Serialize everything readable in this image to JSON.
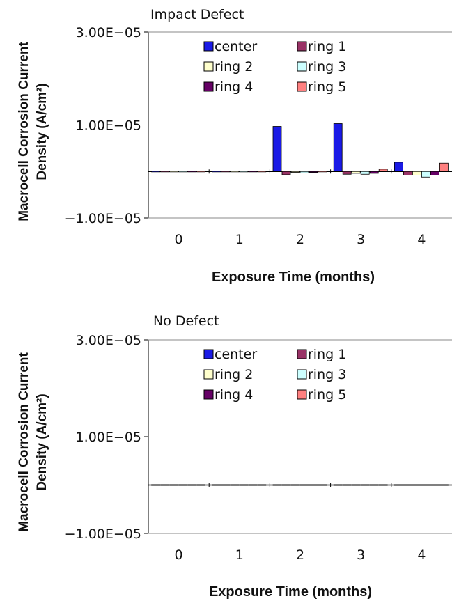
{
  "chart_data": [
    {
      "type": "bar",
      "title": "Impact Defect",
      "xlabel": "Exposure Time (months)",
      "ylabel_line1": "Macrocell Corrosion Current",
      "ylabel_line2": "Density (A/cm²)",
      "categories": [
        "0",
        "1",
        "2",
        "3",
        "4"
      ],
      "ylim": [
        -1e-05,
        3e-05
      ],
      "yticks": [
        {
          "value": 3e-05,
          "label": "3.00E−05"
        },
        {
          "value": 1e-05,
          "label": "1.00E−05"
        },
        {
          "value": -1e-05,
          "label": "−1.00E−05"
        }
      ],
      "grid": false,
      "legend_position": "top",
      "series": [
        {
          "name": "center",
          "color": "#1a1ae6",
          "values": [
            0.0,
            0.0,
            9.7e-06,
            1.03e-05,
            2e-06
          ]
        },
        {
          "name": "ring 1",
          "color": "#993366",
          "values": [
            0.0,
            0.0,
            -7e-07,
            -6e-07,
            -8e-07
          ]
        },
        {
          "name": "ring 2",
          "color": "#ffffcc",
          "values": [
            0.0,
            0.0,
            -2e-07,
            -4e-07,
            -8e-07
          ]
        },
        {
          "name": "ring 3",
          "color": "#ccffff",
          "values": [
            0.0,
            0.0,
            -3e-07,
            -6e-07,
            -1.2e-06
          ]
        },
        {
          "name": "ring 4",
          "color": "#660066",
          "values": [
            0.0,
            0.0,
            -2e-07,
            -4e-07,
            -8e-07
          ]
        },
        {
          "name": "ring 5",
          "color": "#ff8080",
          "values": [
            0.0,
            0.0,
            1e-07,
            5e-07,
            1.8e-06
          ]
        }
      ]
    },
    {
      "type": "bar",
      "title": "No Defect",
      "xlabel": "Exposure Time (months)",
      "ylabel_line1": "Macrocell Corrosion Current",
      "ylabel_line2": "Density (A/cm²)",
      "categories": [
        "0",
        "1",
        "2",
        "3",
        "4"
      ],
      "ylim": [
        -1e-05,
        3e-05
      ],
      "yticks": [
        {
          "value": 3e-05,
          "label": "3.00E−05"
        },
        {
          "value": 1e-05,
          "label": "1.00E−05"
        },
        {
          "value": -1e-05,
          "label": "−1.00E−05"
        }
      ],
      "grid": false,
      "legend_position": "top",
      "series": [
        {
          "name": "center",
          "color": "#1a1ae6",
          "values": [
            0.0,
            0.0,
            0.0,
            0.0,
            0.0
          ]
        },
        {
          "name": "ring 1",
          "color": "#993366",
          "values": [
            0.0,
            0.0,
            0.0,
            0.0,
            0.0
          ]
        },
        {
          "name": "ring 2",
          "color": "#ffffcc",
          "values": [
            0.0,
            0.0,
            0.0,
            0.0,
            0.0
          ]
        },
        {
          "name": "ring 3",
          "color": "#ccffff",
          "values": [
            0.0,
            0.0,
            0.0,
            0.0,
            0.0
          ]
        },
        {
          "name": "ring 4",
          "color": "#660066",
          "values": [
            0.0,
            0.0,
            0.0,
            0.0,
            0.0
          ]
        },
        {
          "name": "ring 5",
          "color": "#ff8080",
          "values": [
            0.0,
            0.0,
            0.0,
            0.0,
            0.0
          ]
        }
      ]
    }
  ]
}
